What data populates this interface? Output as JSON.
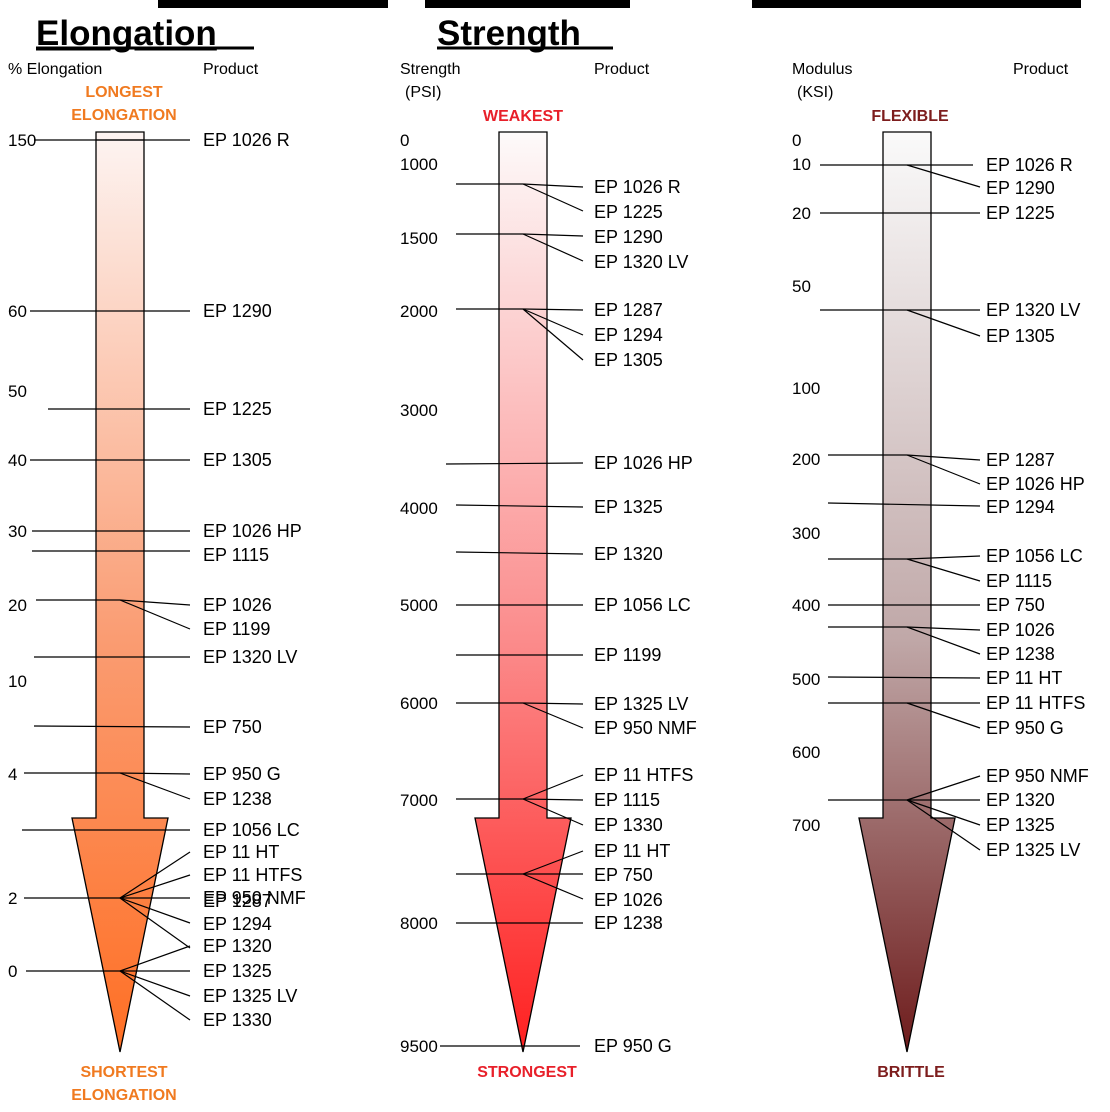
{
  "panels": [
    {
      "id": "elongation",
      "title": "Elongation",
      "axis_label_1": "% Elongation",
      "axis_label_2": "",
      "product_header": "Product",
      "top_label_1": "LONGEST",
      "top_label_2": "ELONGATION",
      "bottom_label_1": "SHORTEST",
      "bottom_label_2": "ELONGATION",
      "accent_color": "#f07a20",
      "gradient_top": "#fdf4f2",
      "gradient_mid": "#fa9c72",
      "gradient_bottom": "#ff6f24",
      "ticks": [
        "150",
        "60",
        "50",
        "40",
        "30",
        "20",
        "10",
        "4",
        "2",
        "0"
      ],
      "products": [
        "EP 1026 R",
        "EP 1290",
        "EP 1225",
        "EP 1305",
        "EP 1026 HP",
        "EP 1115",
        "EP 1026",
        "EP 1199",
        "EP 1320 LV",
        "EP 750",
        "EP 950 G",
        "EP 1238",
        "EP 1056 LC",
        "EP 11 HT",
        "EP 11 HTFS",
        "EP 950 NMF",
        "EP 1287",
        "EP 1294",
        "EP 1320",
        "EP 1325",
        "EP 1325 LV",
        "EP 1330"
      ]
    },
    {
      "id": "strength",
      "title": "Strength",
      "axis_label_1": "Strength",
      "axis_label_2": "(PSI)",
      "product_header": "Product",
      "top_label_1": "WEAKEST",
      "top_label_2": "",
      "bottom_label_1": "STRONGEST",
      "bottom_label_2": "",
      "accent_color": "#e8202a",
      "gradient_top": "#fdfafa",
      "gradient_mid": "#fb8c8c",
      "gradient_bottom": "#ff2020",
      "ticks": [
        "0",
        "1000",
        "1500",
        "2000",
        "3000",
        "4000",
        "5000",
        "6000",
        "7000",
        "8000",
        "9500"
      ],
      "products": [
        "EP 1026 R",
        "EP 1225",
        "EP 1290",
        "EP 1320 LV",
        "EP 1287",
        "EP 1294",
        "EP 1305",
        "EP 1026 HP",
        "EP 1325",
        "EP 1320",
        "EP 1056 LC",
        "EP 1199",
        "EP 1325 LV",
        "EP 950 NMF",
        "EP 11 HTFS",
        "EP 1115",
        "EP 1330",
        "EP 11 HT",
        "EP 750",
        "EP 1026",
        "EP 1238",
        "EP 950 G"
      ]
    },
    {
      "id": "modulus",
      "title": "",
      "axis_label_1": "Modulus",
      "axis_label_2": "(KSI)",
      "product_header": "Product",
      "top_label_1": "FLEXIBLE",
      "top_label_2": "",
      "bottom_label_1": "BRITTLE",
      "bottom_label_2": "",
      "accent_color": "#7d1d1d",
      "gradient_top": "#fafafa",
      "gradient_mid": "#c0a8a8",
      "gradient_bottom": "#6e1c1c",
      "ticks": [
        "0",
        "10",
        "20",
        "50",
        "100",
        "200",
        "300",
        "400",
        "500",
        "600",
        "700"
      ],
      "products": [
        "EP 1026 R",
        "EP 1290",
        "EP 1225",
        "EP 1320 LV",
        "EP 1305",
        "EP 1287",
        "EP 1026 HP",
        "EP 1294",
        "EP 1056 LC",
        "EP 1115",
        "EP 750",
        "EP 1026",
        "EP 1238",
        "EP 11 HT",
        "EP 11 HTFS",
        "EP 950 G",
        "EP 950 NMF",
        "EP 1320",
        "EP 1325",
        "EP 1325 LV"
      ]
    }
  ]
}
